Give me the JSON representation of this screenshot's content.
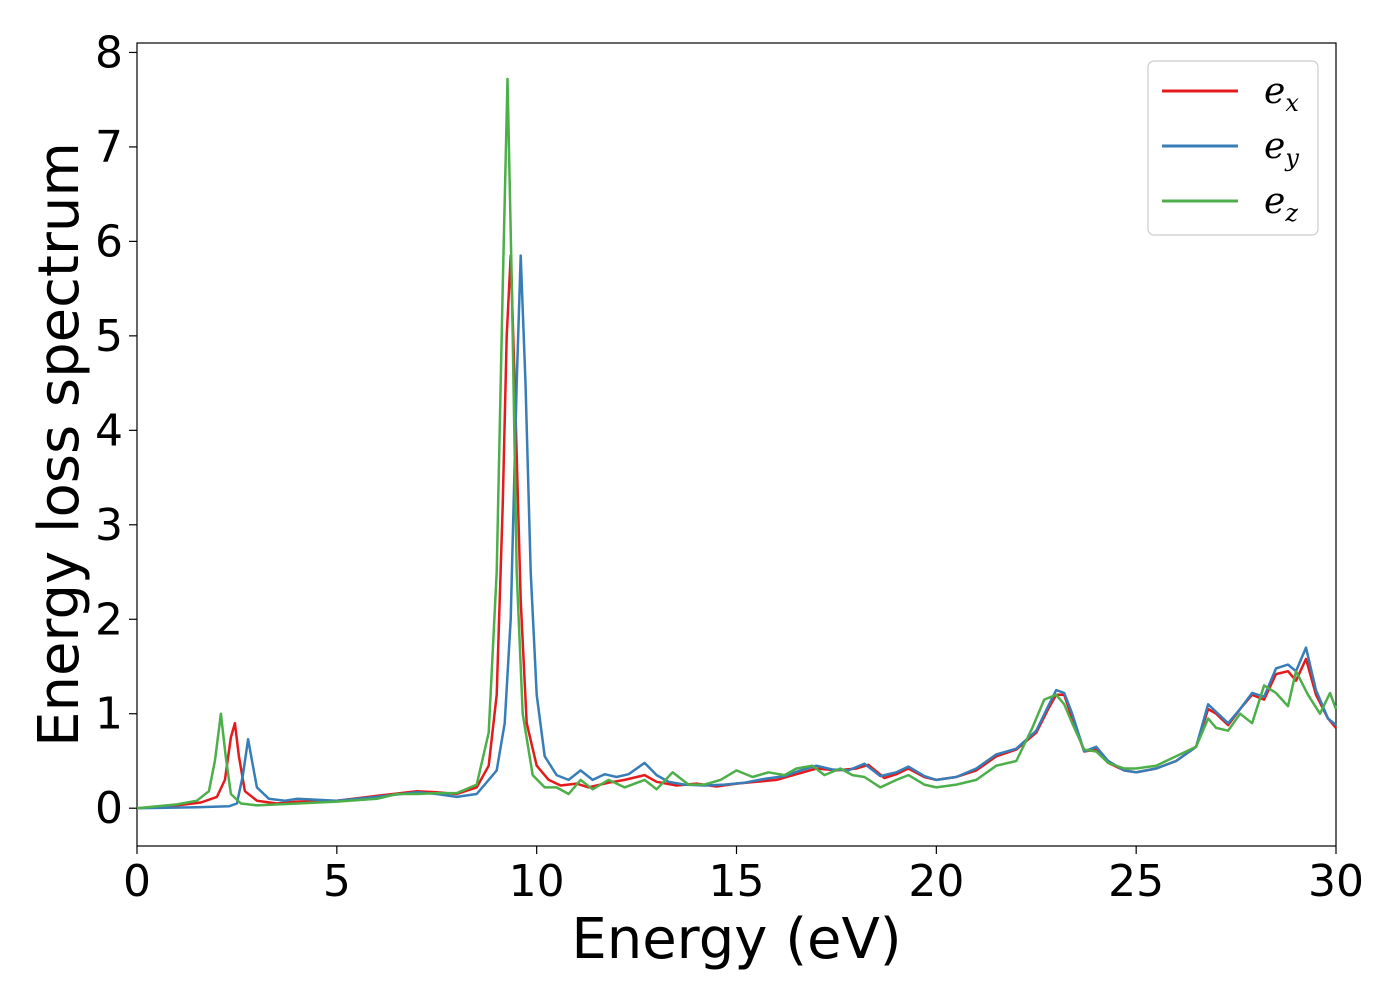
{
  "chart_data": {
    "type": "line",
    "title": "",
    "xlabel": "Energy (eV)",
    "ylabel": "Energy loss spectrum",
    "xlim": [
      0,
      30
    ],
    "ylim": [
      -0.4,
      8.1
    ],
    "x_ticks": [
      0,
      5,
      10,
      15,
      20,
      25,
      30
    ],
    "y_ticks": [
      0,
      1,
      2,
      3,
      4,
      5,
      6,
      7,
      8
    ],
    "grid": false,
    "legend_position": "top-right",
    "series": [
      {
        "name": "e_x",
        "legend_main": "e",
        "legend_sub": "x",
        "color": "#e41a1c",
        "points": [
          [
            0,
            0.0
          ],
          [
            1.0,
            0.03
          ],
          [
            1.6,
            0.06
          ],
          [
            2.0,
            0.12
          ],
          [
            2.2,
            0.3
          ],
          [
            2.35,
            0.75
          ],
          [
            2.45,
            0.9
          ],
          [
            2.55,
            0.55
          ],
          [
            2.7,
            0.18
          ],
          [
            3.0,
            0.08
          ],
          [
            3.5,
            0.05
          ],
          [
            4.0,
            0.07
          ],
          [
            5.0,
            0.08
          ],
          [
            6.0,
            0.13
          ],
          [
            7.0,
            0.18
          ],
          [
            7.5,
            0.17
          ],
          [
            8.0,
            0.15
          ],
          [
            8.5,
            0.22
          ],
          [
            8.8,
            0.45
          ],
          [
            9.0,
            1.2
          ],
          [
            9.15,
            3.2
          ],
          [
            9.25,
            5.0
          ],
          [
            9.35,
            5.85
          ],
          [
            9.45,
            4.5
          ],
          [
            9.6,
            2.2
          ],
          [
            9.75,
            0.9
          ],
          [
            10.0,
            0.45
          ],
          [
            10.3,
            0.3
          ],
          [
            10.6,
            0.24
          ],
          [
            11.0,
            0.26
          ],
          [
            11.3,
            0.22
          ],
          [
            11.8,
            0.27
          ],
          [
            12.2,
            0.3
          ],
          [
            12.7,
            0.35
          ],
          [
            13.0,
            0.28
          ],
          [
            13.5,
            0.24
          ],
          [
            14.0,
            0.26
          ],
          [
            14.5,
            0.23
          ],
          [
            15.0,
            0.26
          ],
          [
            15.5,
            0.28
          ],
          [
            16.0,
            0.3
          ],
          [
            16.5,
            0.36
          ],
          [
            17.0,
            0.42
          ],
          [
            17.5,
            0.4
          ],
          [
            18.0,
            0.42
          ],
          [
            18.3,
            0.46
          ],
          [
            18.7,
            0.32
          ],
          [
            19.0,
            0.36
          ],
          [
            19.3,
            0.42
          ],
          [
            19.7,
            0.33
          ],
          [
            20.0,
            0.3
          ],
          [
            20.5,
            0.33
          ],
          [
            21.0,
            0.4
          ],
          [
            21.5,
            0.55
          ],
          [
            22.0,
            0.62
          ],
          [
            22.5,
            0.8
          ],
          [
            22.8,
            1.05
          ],
          [
            23.0,
            1.2
          ],
          [
            23.2,
            1.2
          ],
          [
            23.4,
            0.95
          ],
          [
            23.7,
            0.6
          ],
          [
            24.0,
            0.62
          ],
          [
            24.3,
            0.48
          ],
          [
            24.7,
            0.4
          ],
          [
            25.0,
            0.38
          ],
          [
            25.5,
            0.42
          ],
          [
            26.0,
            0.5
          ],
          [
            26.5,
            0.65
          ],
          [
            26.8,
            1.05
          ],
          [
            27.0,
            1.0
          ],
          [
            27.3,
            0.88
          ],
          [
            27.6,
            1.05
          ],
          [
            27.9,
            1.2
          ],
          [
            28.2,
            1.15
          ],
          [
            28.5,
            1.42
          ],
          [
            28.8,
            1.45
          ],
          [
            29.0,
            1.35
          ],
          [
            29.25,
            1.58
          ],
          [
            29.5,
            1.2
          ],
          [
            29.8,
            0.95
          ],
          [
            30.0,
            0.85
          ]
        ]
      },
      {
        "name": "e_y",
        "legend_main": "e",
        "legend_sub": "y",
        "color": "#377eb8",
        "points": [
          [
            0,
            0.0
          ],
          [
            1.5,
            0.01
          ],
          [
            2.3,
            0.02
          ],
          [
            2.5,
            0.05
          ],
          [
            2.65,
            0.35
          ],
          [
            2.78,
            0.73
          ],
          [
            2.9,
            0.45
          ],
          [
            3.0,
            0.22
          ],
          [
            3.3,
            0.1
          ],
          [
            3.7,
            0.08
          ],
          [
            4.0,
            0.1
          ],
          [
            5.0,
            0.08
          ],
          [
            6.0,
            0.12
          ],
          [
            7.0,
            0.17
          ],
          [
            7.5,
            0.15
          ],
          [
            8.0,
            0.12
          ],
          [
            8.5,
            0.15
          ],
          [
            9.0,
            0.4
          ],
          [
            9.2,
            0.9
          ],
          [
            9.35,
            2.0
          ],
          [
            9.5,
            4.5
          ],
          [
            9.6,
            5.85
          ],
          [
            9.72,
            4.5
          ],
          [
            9.85,
            2.5
          ],
          [
            10.0,
            1.2
          ],
          [
            10.2,
            0.55
          ],
          [
            10.5,
            0.35
          ],
          [
            10.8,
            0.3
          ],
          [
            11.1,
            0.4
          ],
          [
            11.4,
            0.3
          ],
          [
            11.7,
            0.36
          ],
          [
            12.0,
            0.33
          ],
          [
            12.3,
            0.36
          ],
          [
            12.7,
            0.48
          ],
          [
            13.0,
            0.35
          ],
          [
            13.3,
            0.28
          ],
          [
            13.7,
            0.25
          ],
          [
            14.2,
            0.24
          ],
          [
            14.7,
            0.25
          ],
          [
            15.2,
            0.27
          ],
          [
            15.7,
            0.31
          ],
          [
            16.2,
            0.34
          ],
          [
            16.6,
            0.4
          ],
          [
            17.0,
            0.45
          ],
          [
            17.4,
            0.41
          ],
          [
            17.8,
            0.4
          ],
          [
            18.2,
            0.47
          ],
          [
            18.6,
            0.34
          ],
          [
            19.0,
            0.38
          ],
          [
            19.3,
            0.44
          ],
          [
            19.7,
            0.34
          ],
          [
            20.0,
            0.3
          ],
          [
            20.5,
            0.33
          ],
          [
            21.0,
            0.42
          ],
          [
            21.5,
            0.57
          ],
          [
            22.0,
            0.63
          ],
          [
            22.5,
            0.82
          ],
          [
            22.8,
            1.08
          ],
          [
            23.0,
            1.25
          ],
          [
            23.2,
            1.22
          ],
          [
            23.4,
            1.0
          ],
          [
            23.7,
            0.6
          ],
          [
            24.0,
            0.65
          ],
          [
            24.3,
            0.5
          ],
          [
            24.7,
            0.4
          ],
          [
            25.0,
            0.38
          ],
          [
            25.5,
            0.42
          ],
          [
            26.0,
            0.5
          ],
          [
            26.5,
            0.65
          ],
          [
            26.8,
            1.1
          ],
          [
            27.0,
            1.02
          ],
          [
            27.3,
            0.9
          ],
          [
            27.6,
            1.05
          ],
          [
            27.9,
            1.22
          ],
          [
            28.2,
            1.18
          ],
          [
            28.5,
            1.48
          ],
          [
            28.8,
            1.52
          ],
          [
            29.0,
            1.45
          ],
          [
            29.25,
            1.7
          ],
          [
            29.5,
            1.25
          ],
          [
            29.8,
            0.95
          ],
          [
            30.0,
            0.88
          ]
        ]
      },
      {
        "name": "e_z",
        "legend_main": "e",
        "legend_sub": "z",
        "color": "#4daf4a",
        "points": [
          [
            0,
            0.0
          ],
          [
            1.0,
            0.04
          ],
          [
            1.5,
            0.08
          ],
          [
            1.8,
            0.18
          ],
          [
            1.95,
            0.5
          ],
          [
            2.1,
            1.0
          ],
          [
            2.22,
            0.55
          ],
          [
            2.35,
            0.15
          ],
          [
            2.6,
            0.05
          ],
          [
            3.0,
            0.03
          ],
          [
            4.0,
            0.05
          ],
          [
            5.0,
            0.07
          ],
          [
            6.0,
            0.1
          ],
          [
            6.5,
            0.15
          ],
          [
            7.0,
            0.15
          ],
          [
            7.5,
            0.16
          ],
          [
            8.0,
            0.16
          ],
          [
            8.5,
            0.25
          ],
          [
            8.8,
            0.8
          ],
          [
            9.0,
            2.5
          ],
          [
            9.15,
            5.5
          ],
          [
            9.27,
            7.72
          ],
          [
            9.38,
            5.5
          ],
          [
            9.5,
            2.5
          ],
          [
            9.65,
            1.0
          ],
          [
            9.9,
            0.35
          ],
          [
            10.2,
            0.22
          ],
          [
            10.5,
            0.22
          ],
          [
            10.8,
            0.15
          ],
          [
            11.1,
            0.3
          ],
          [
            11.4,
            0.2
          ],
          [
            11.8,
            0.3
          ],
          [
            12.2,
            0.22
          ],
          [
            12.7,
            0.3
          ],
          [
            13.0,
            0.2
          ],
          [
            13.4,
            0.38
          ],
          [
            13.8,
            0.25
          ],
          [
            14.2,
            0.25
          ],
          [
            14.6,
            0.3
          ],
          [
            15.0,
            0.4
          ],
          [
            15.4,
            0.33
          ],
          [
            15.8,
            0.38
          ],
          [
            16.2,
            0.35
          ],
          [
            16.5,
            0.42
          ],
          [
            16.9,
            0.45
          ],
          [
            17.2,
            0.35
          ],
          [
            17.6,
            0.42
          ],
          [
            17.9,
            0.35
          ],
          [
            18.2,
            0.33
          ],
          [
            18.6,
            0.22
          ],
          [
            19.0,
            0.3
          ],
          [
            19.3,
            0.35
          ],
          [
            19.7,
            0.25
          ],
          [
            20.0,
            0.22
          ],
          [
            20.5,
            0.25
          ],
          [
            21.0,
            0.3
          ],
          [
            21.5,
            0.45
          ],
          [
            22.0,
            0.5
          ],
          [
            22.4,
            0.85
          ],
          [
            22.7,
            1.15
          ],
          [
            23.0,
            1.2
          ],
          [
            23.2,
            1.1
          ],
          [
            23.4,
            0.9
          ],
          [
            23.7,
            0.62
          ],
          [
            24.0,
            0.6
          ],
          [
            24.3,
            0.48
          ],
          [
            24.7,
            0.42
          ],
          [
            25.0,
            0.42
          ],
          [
            25.5,
            0.45
          ],
          [
            26.0,
            0.55
          ],
          [
            26.5,
            0.65
          ],
          [
            26.8,
            0.95
          ],
          [
            27.0,
            0.85
          ],
          [
            27.3,
            0.82
          ],
          [
            27.6,
            1.0
          ],
          [
            27.9,
            0.9
          ],
          [
            28.2,
            1.3
          ],
          [
            28.5,
            1.22
          ],
          [
            28.8,
            1.08
          ],
          [
            29.0,
            1.45
          ],
          [
            29.3,
            1.2
          ],
          [
            29.6,
            1.0
          ],
          [
            29.85,
            1.22
          ],
          [
            30.0,
            1.05
          ]
        ]
      }
    ]
  }
}
